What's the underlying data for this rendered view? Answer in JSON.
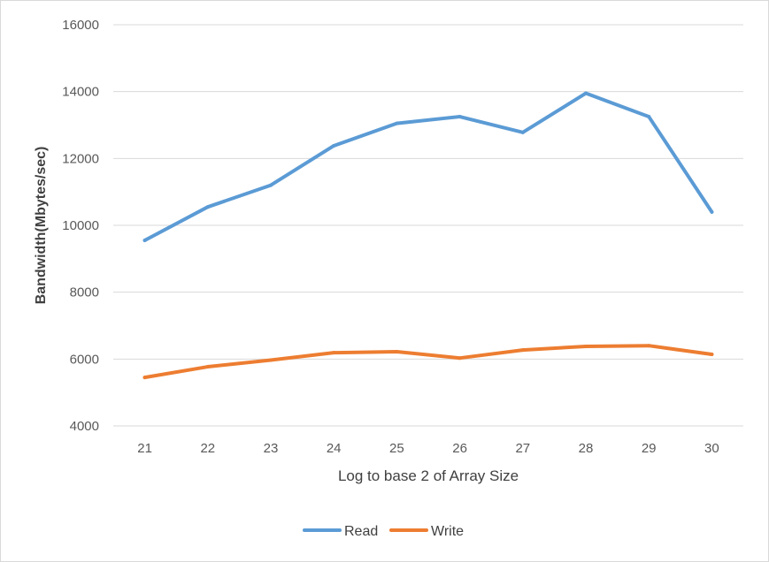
{
  "chart_data": {
    "type": "line",
    "title": "",
    "xlabel": "Log to base 2 of Array Size",
    "ylabel": "Bandwidth(Mbytes/sec)",
    "categories": [
      "21",
      "22",
      "23",
      "24",
      "25",
      "26",
      "27",
      "28",
      "29",
      "30"
    ],
    "ylim": [
      4000,
      16000
    ],
    "yticks": [
      "4000",
      "6000",
      "8000",
      "10000",
      "12000",
      "14000",
      "16000"
    ],
    "grid": true,
    "legend_position": "bottom",
    "series": [
      {
        "name": "Read",
        "color": "#5b9bd5",
        "values": [
          9550,
          10550,
          11200,
          12380,
          13050,
          13250,
          12780,
          13950,
          13250,
          10400
        ]
      },
      {
        "name": "Write",
        "color": "#ed7d31",
        "values": [
          5450,
          5770,
          5970,
          6190,
          6220,
          6030,
          6270,
          6380,
          6400,
          6140
        ]
      }
    ]
  }
}
